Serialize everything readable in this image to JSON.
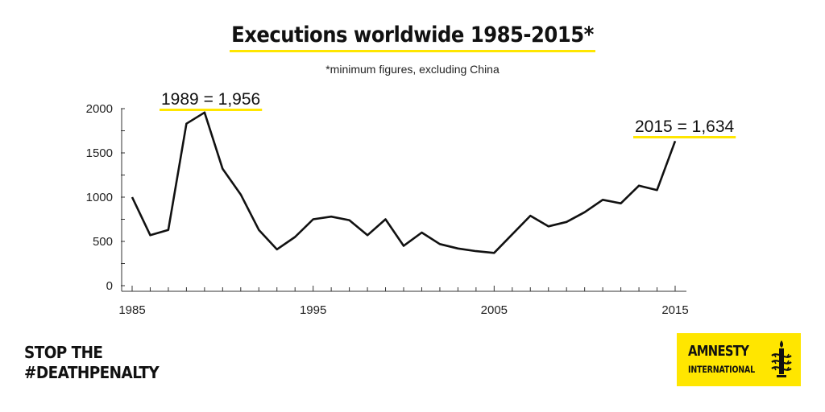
{
  "chart_data": {
    "type": "line",
    "title": "Executions worldwide 1985-2015*",
    "subtitle": "*minimum figures, excluding China",
    "xlabel": "",
    "ylabel": "",
    "xlim": [
      1985,
      2015
    ],
    "ylim": [
      0,
      2000
    ],
    "x_ticks": [
      1985,
      1995,
      2005,
      2015
    ],
    "y_ticks": [
      0,
      500,
      1000,
      1500,
      2000
    ],
    "series": [
      {
        "name": "Executions",
        "x": [
          1985,
          1986,
          1987,
          1988,
          1989,
          1990,
          1991,
          1992,
          1993,
          1994,
          1995,
          1996,
          1997,
          1998,
          1999,
          2000,
          2001,
          2002,
          2003,
          2004,
          2005,
          2006,
          2007,
          2008,
          2009,
          2010,
          2011,
          2012,
          2013,
          2014,
          2015
        ],
        "values": [
          1000,
          570,
          630,
          1830,
          1956,
          1320,
          1030,
          630,
          410,
          550,
          750,
          780,
          740,
          570,
          750,
          450,
          600,
          470,
          420,
          390,
          370,
          580,
          790,
          670,
          720,
          830,
          970,
          930,
          1130,
          1080,
          1634
        ]
      }
    ],
    "annotations": [
      {
        "label": "1989",
        "eq": "=",
        "value": "1,956",
        "x": 1989,
        "y": 1956
      },
      {
        "label": "2015",
        "eq": "=",
        "value": "1,634",
        "x": 2015,
        "y": 1634
      }
    ],
    "colors": {
      "line": "#111111",
      "highlight": "#ffe600",
      "axis": "#333333"
    }
  },
  "footer": {
    "campaign_line1": "STOP THE",
    "campaign_line2": "#DEATHPENALTY"
  },
  "logo": {
    "name": "AMNESTY",
    "subname": "INTERNATIONAL",
    "icon": "candle-barbed-wire-icon",
    "background": "#ffe600"
  }
}
